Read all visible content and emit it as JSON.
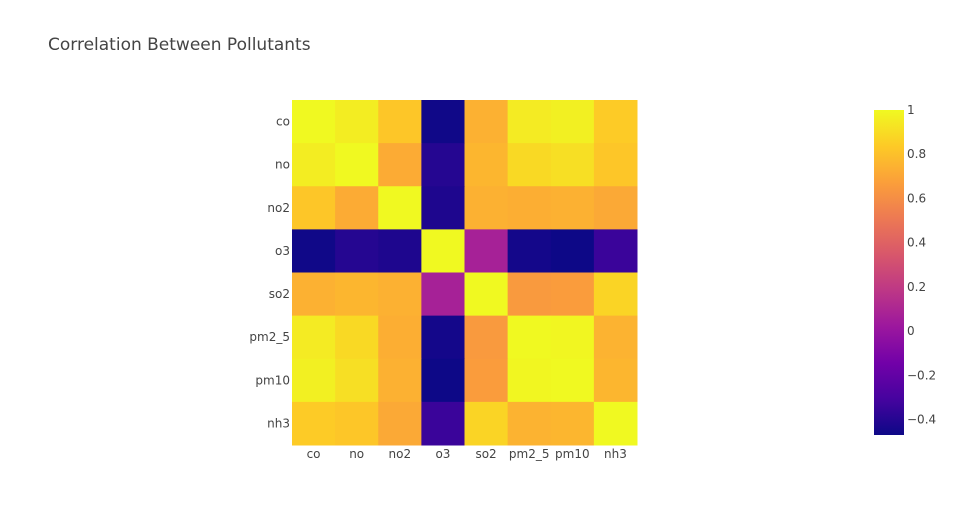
{
  "chart_data": {
    "type": "heatmap",
    "title": "Correlation Between Pollutants",
    "x_categories": [
      "co",
      "no",
      "no2",
      "o3",
      "so2",
      "pm2_5",
      "pm10",
      "nh3"
    ],
    "y_categories": [
      "co",
      "no",
      "no2",
      "o3",
      "so2",
      "pm2_5",
      "pm10",
      "nh3"
    ],
    "z": [
      [
        1.0,
        0.96,
        0.82,
        -0.46,
        0.74,
        0.95,
        0.97,
        0.84
      ],
      [
        0.96,
        1.0,
        0.72,
        -0.4,
        0.76,
        0.89,
        0.91,
        0.82
      ],
      [
        0.82,
        0.72,
        1.0,
        -0.42,
        0.74,
        0.73,
        0.74,
        0.71
      ],
      [
        -0.46,
        -0.4,
        -0.42,
        1.0,
        0.07,
        -0.45,
        -0.47,
        -0.34
      ],
      [
        0.74,
        0.76,
        0.74,
        0.07,
        1.0,
        0.65,
        0.66,
        0.87
      ],
      [
        0.95,
        0.89,
        0.73,
        -0.45,
        0.65,
        1.0,
        0.99,
        0.75
      ],
      [
        0.97,
        0.91,
        0.74,
        -0.47,
        0.66,
        0.99,
        1.0,
        0.76
      ],
      [
        0.84,
        0.82,
        0.71,
        -0.34,
        0.87,
        0.75,
        0.76,
        1.0
      ]
    ],
    "zmin": -0.47,
    "zmax": 1.0,
    "colorscale": "plasma",
    "colorbar_ticks": [
      {
        "value": 1,
        "label": "1"
      },
      {
        "value": 0.8,
        "label": "0.8"
      },
      {
        "value": 0.6,
        "label": "0.6"
      },
      {
        "value": 0.4,
        "label": "0.4"
      },
      {
        "value": 0.2,
        "label": "0.2"
      },
      {
        "value": 0,
        "label": "0"
      },
      {
        "value": -0.2,
        "label": "−0.2"
      },
      {
        "value": -0.4,
        "label": "−0.4"
      }
    ],
    "colors": {
      "plasma": [
        "#0d0887",
        "#46039f",
        "#7201a8",
        "#9c179e",
        "#bd3786",
        "#d8576b",
        "#ed7953",
        "#fb9f3a",
        "#fdca26",
        "#f0f921"
      ]
    }
  }
}
